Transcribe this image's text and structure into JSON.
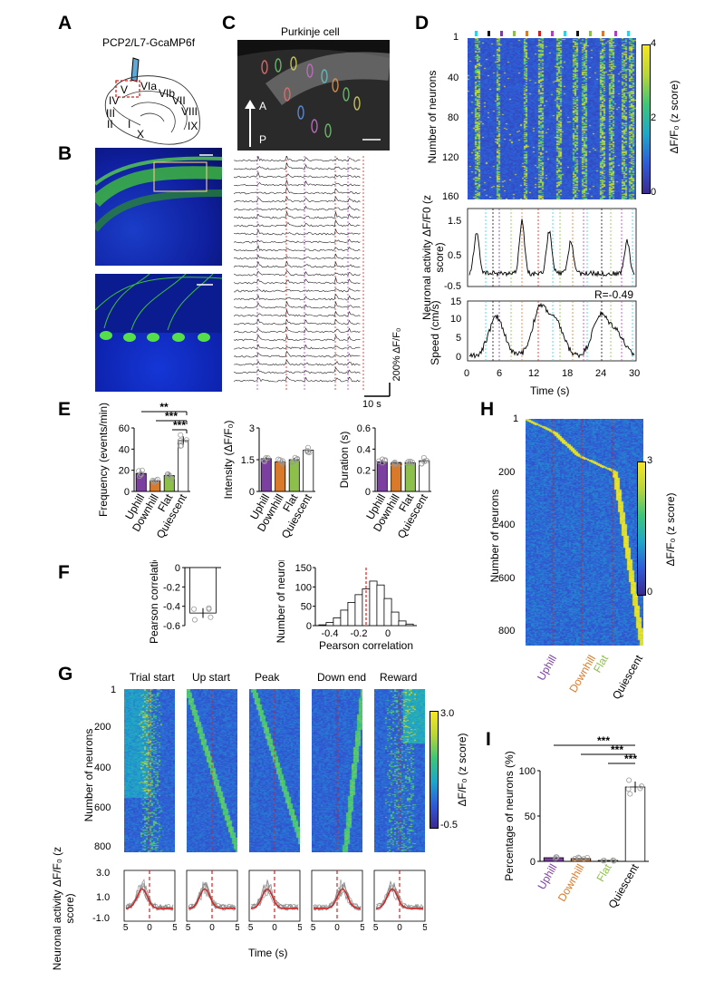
{
  "panels": {
    "A": {
      "label": "A",
      "construct": "PCP2/L7-GcaMP6f",
      "lobules": [
        "V",
        "VIa",
        "VIb",
        "VII",
        "VIII",
        "IX",
        "IV",
        "III",
        "II",
        "I",
        "X"
      ]
    },
    "B": {
      "label": "B"
    },
    "C": {
      "label": "C",
      "title": "Purkinje cell",
      "axis_a": "A",
      "axis_p": "P",
      "time_scale": "10 s",
      "amp_scale": "200% ΔF/F₀"
    },
    "D": {
      "label": "D",
      "heatmap": {
        "ylabel": "Number of neurons",
        "yticks": [
          "1",
          "40",
          "80",
          "120",
          "160"
        ],
        "colorbar_label": "ΔF/F₀ (z score)",
        "colorbar_ticks": [
          "4",
          "2",
          "0"
        ]
      },
      "activity": {
        "ylabel": "Neuronal activity ΔF/F0 (z score)",
        "yticks": [
          "1.5",
          "0.5",
          "-0.5"
        ]
      },
      "speed": {
        "ylabel": "Speed (cm/s)",
        "yticks": [
          "15",
          "10",
          "5",
          "0"
        ],
        "annotation": "R=-0.49",
        "xlabel": "Time (s)",
        "xticks": [
          "0",
          "6",
          "12",
          "18",
          "24",
          "30"
        ]
      }
    },
    "E": {
      "label": "E",
      "significance": [
        "**",
        "***",
        "***"
      ],
      "categories": [
        "Uphill",
        "Downhill",
        "Flat",
        "Quiescent"
      ]
    },
    "F": {
      "label": "F"
    },
    "G": {
      "label": "G",
      "titles": [
        "Trial start",
        "Up start",
        "Peak",
        "Down end",
        "Reward"
      ],
      "ylabel": "Number of neurons",
      "yticks": [
        "1",
        "200",
        "400",
        "600",
        "800"
      ],
      "colorbar_label": "ΔF/F₀ (z score)",
      "colorbar_ticks": [
        "3.0",
        "-0.5"
      ],
      "trace_ylabel": "Neuronal activity ΔF/F₀ (z score)",
      "trace_yticks": [
        "3.0",
        "1.0",
        "-1.0"
      ],
      "xticks": [
        "-5",
        "0",
        "5"
      ],
      "xlabel": "Time (s)"
    },
    "H": {
      "label": "H",
      "ylabel": "Number of neurons",
      "yticks": [
        "1",
        "200",
        "400",
        "600",
        "800"
      ],
      "colorbar_label": "ΔF/F₀ (z score)",
      "colorbar_ticks": [
        "3",
        "0"
      ],
      "categories": [
        "Uphill",
        "Downhill",
        "Flat",
        "Quiescent"
      ]
    },
    "I": {
      "label": "I",
      "ylabel": "Percentage of neurons (%)",
      "significance": [
        "***",
        "***",
        "***"
      ]
    }
  },
  "colors": {
    "uphill": "#7b3fa0",
    "downhill": "#d97a2b",
    "flat": "#8dbf4b",
    "quiescent": "#ffffff",
    "red": "#d42020",
    "heat_low": "#3b2a8f",
    "heat_high": "#f5e625"
  },
  "chart_data": [
    {
      "type": "bar",
      "panel": "E",
      "ylabel": "Frequency (events/min)",
      "categories": [
        "Uphill",
        "Downhill",
        "Flat",
        "Quiescent"
      ],
      "values": [
        17,
        10,
        15,
        48
      ],
      "errors": [
        2,
        1,
        2,
        4
      ],
      "ylim": [
        0,
        60
      ],
      "yticks": [
        0,
        20,
        40,
        60
      ]
    },
    {
      "type": "bar",
      "panel": "E",
      "ylabel": "Intensity (ΔF/F₀)",
      "categories": [
        "Uphill",
        "Downhill",
        "Flat",
        "Quiescent"
      ],
      "values": [
        1.55,
        1.4,
        1.5,
        1.95
      ],
      "errors": [
        0.1,
        0.08,
        0.08,
        0.08
      ],
      "ylim": [
        0,
        3.0
      ],
      "yticks": [
        0,
        1.5,
        3.0
      ]
    },
    {
      "type": "bar",
      "panel": "E",
      "ylabel": "Duration (s)",
      "categories": [
        "Uphill",
        "Downhill",
        "Flat",
        "Quiescent"
      ],
      "values": [
        0.28,
        0.27,
        0.27,
        0.29
      ],
      "errors": [
        0.02,
        0.01,
        0.01,
        0.02
      ],
      "ylim": [
        0,
        0.6
      ],
      "yticks": [
        0,
        0.2,
        0.4,
        0.6
      ]
    },
    {
      "type": "bar",
      "panel": "F",
      "ylabel": "Pearson correlation",
      "categories": [
        ""
      ],
      "values": [
        -0.47
      ],
      "errors": [
        0.05
      ],
      "ylim": [
        -0.6,
        0
      ],
      "yticks": [
        -0.6,
        -0.4,
        -0.2,
        0
      ]
    },
    {
      "type": "bar",
      "panel": "F",
      "subtype": "histogram",
      "xlabel": "Pearson correlation",
      "ylabel": "Number of neurons",
      "x": [
        -0.45,
        -0.4,
        -0.35,
        -0.3,
        -0.25,
        -0.2,
        -0.15,
        -0.1,
        -0.05,
        0,
        0.05,
        0.1,
        0.15
      ],
      "values": [
        2,
        8,
        20,
        40,
        60,
        80,
        95,
        115,
        105,
        70,
        35,
        12,
        4
      ],
      "ylim": [
        0,
        150
      ],
      "yticks": [
        0,
        50,
        100,
        150
      ],
      "xticks": [
        -0.4,
        -0.2,
        0
      ],
      "xlim": [
        -0.5,
        0.2
      ]
    },
    {
      "type": "bar",
      "panel": "I",
      "ylabel": "Percentage of neurons (%)",
      "categories": [
        "Uphill",
        "Downhill",
        "Flat",
        "Quiescent"
      ],
      "values": [
        4,
        3,
        1,
        82
      ],
      "errors": [
        1,
        1,
        0.5,
        6
      ],
      "ylim": [
        0,
        100
      ],
      "yticks": [
        0,
        50,
        100
      ]
    }
  ]
}
